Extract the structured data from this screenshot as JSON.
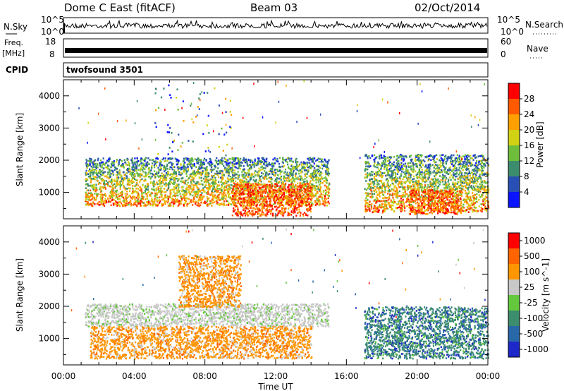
{
  "header": {
    "station": "Dome C East (fitACF)",
    "beam": "Beam 03",
    "date": "02/Oct/2014"
  },
  "info_panels": {
    "nsky_label": "N.Sky",
    "nsearch_label": "N.Search",
    "noise_ticks_left": [
      "10^5",
      "10^0"
    ],
    "noise_ticks_right": [
      "10^5",
      "10^0"
    ],
    "freq_label": "Freq.",
    "freq_unit": "[MHz]",
    "freq_ticks": [
      "18",
      "8"
    ],
    "nave_label": "Nave",
    "nave_ticks": [
      "60",
      "0"
    ],
    "cpid_label": "CPID",
    "cpid_value": "twofsound 3501"
  },
  "chart_data": [
    {
      "type": "heatmap",
      "name": "power",
      "ylabel": "Slant Range [km]",
      "ylim": [
        180,
        4500
      ],
      "yticks": [
        1000,
        2000,
        3000,
        4000
      ],
      "xlim_hours": [
        0,
        24
      ],
      "colorbar": {
        "label": "Power [dB]",
        "ticks": [
          "4",
          "8",
          "12",
          "16",
          "20",
          "24",
          "28"
        ],
        "colors": [
          "#0a14ff",
          "#2850b4",
          "#3c8c6e",
          "#6ebe3c",
          "#d2d214",
          "#ffa000",
          "#ff5a00",
          "#ff0000"
        ]
      },
      "echo_regions_hours_km": [
        {
          "t": [
            1.2,
            15.0
          ],
          "r": [
            600,
            2100
          ],
          "level": "mixed"
        },
        {
          "t": [
            9.5,
            14.0
          ],
          "r": [
            300,
            1300
          ],
          "level": "strong"
        },
        {
          "t": [
            17.0,
            24.0
          ],
          "r": [
            400,
            2200
          ],
          "level": "mixed"
        },
        {
          "t": [
            19.5,
            22.5
          ],
          "r": [
            350,
            1100
          ],
          "level": "strong"
        },
        {
          "t": [
            5.0,
            9.5
          ],
          "r": [
            2000,
            4400
          ],
          "level": "weak"
        }
      ]
    },
    {
      "type": "heatmap",
      "name": "velocity",
      "ylabel": "Slant Range [km]",
      "ylim": [
        180,
        4500
      ],
      "yticks": [
        1000,
        2000,
        3000,
        4000
      ],
      "xlim_hours": [
        0,
        24
      ],
      "colorbar": {
        "label": "Velocity [m s^-1]",
        "ticks": [
          "1000",
          "500",
          "100",
          "25",
          "-25",
          "-100",
          "-500",
          "-1000"
        ],
        "colors": [
          "#1e28c8",
          "#2868a8",
          "#3c8c6e",
          "#64c83c",
          "#c8c8c8",
          "#ff9600",
          "#ff6400",
          "#ff0000"
        ]
      },
      "echo_regions_hours_km": [
        {
          "t": [
            1.2,
            15.0
          ],
          "r": [
            1400,
            2100
          ],
          "level": "near-zero"
        },
        {
          "t": [
            1.5,
            14.0
          ],
          "r": [
            400,
            1400
          ],
          "level": "away"
        },
        {
          "t": [
            17.0,
            24.0
          ],
          "r": [
            400,
            2000
          ],
          "level": "toward"
        },
        {
          "t": [
            6.5,
            10.0
          ],
          "r": [
            2000,
            3600
          ],
          "level": "away"
        }
      ]
    }
  ],
  "x_axis": {
    "ticks": [
      "00:00",
      "04:00",
      "08:00",
      "12:00",
      "16:00",
      "20:00",
      "00:00"
    ],
    "label": "Time UT"
  }
}
